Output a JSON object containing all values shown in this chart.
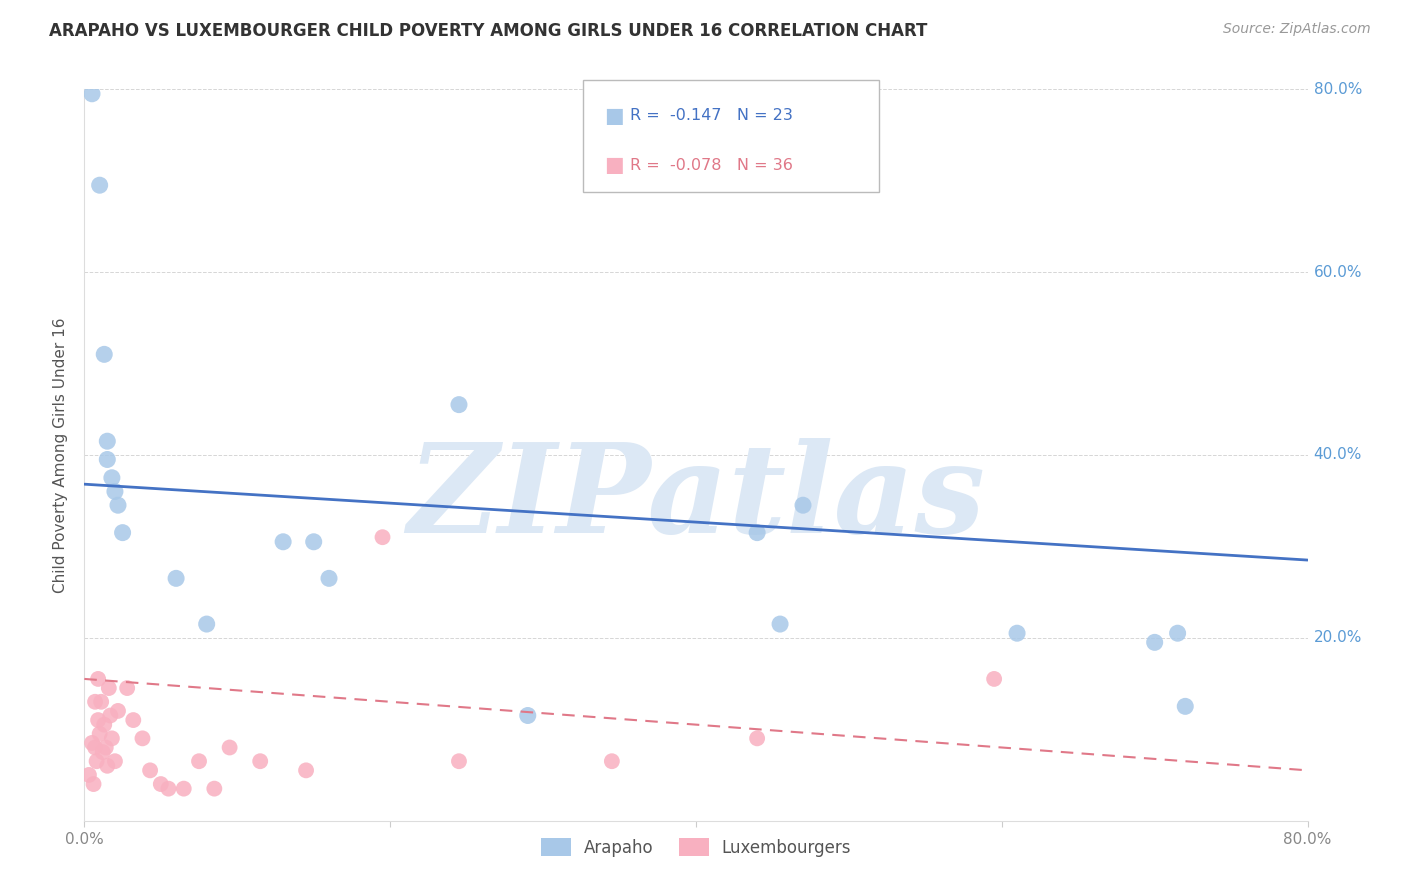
{
  "title": "ARAPAHO VS LUXEMBOURGER CHILD POVERTY AMONG GIRLS UNDER 16 CORRELATION CHART",
  "source": "Source: ZipAtlas.com",
  "ylabel": "Child Poverty Among Girls Under 16",
  "xlim": [
    0.0,
    0.8
  ],
  "ylim": [
    0.0,
    0.8
  ],
  "xticks": [
    0.0,
    0.2,
    0.4,
    0.6,
    0.8
  ],
  "yticks": [
    0.0,
    0.2,
    0.4,
    0.6,
    0.8
  ],
  "ytick_labels_right": [
    "",
    "20.0%",
    "40.0%",
    "60.0%",
    "80.0%"
  ],
  "xtick_labels": [
    "0.0%",
    "",
    "",
    "",
    "80.0%"
  ],
  "arapaho_color": "#a8c8e8",
  "luxembourger_color": "#f8b0c0",
  "arapaho_line_color": "#4472c4",
  "luxembourger_line_color": "#e07888",
  "arapaho_R": -0.147,
  "arapaho_N": 23,
  "luxembourger_R": -0.078,
  "luxembourger_N": 36,
  "watermark_text": "ZIPatlas",
  "watermark_color": "#dce8f5",
  "legend_label_arapaho": "Arapaho",
  "legend_label_luxembourger": "Luxembourgers",
  "arapaho_x": [
    0.005,
    0.01,
    0.013,
    0.015,
    0.015,
    0.018,
    0.02,
    0.022,
    0.025,
    0.06,
    0.08,
    0.13,
    0.15,
    0.16,
    0.245,
    0.44,
    0.455,
    0.47,
    0.61,
    0.7,
    0.715,
    0.72,
    0.29
  ],
  "arapaho_y": [
    0.795,
    0.695,
    0.51,
    0.415,
    0.395,
    0.375,
    0.36,
    0.345,
    0.315,
    0.265,
    0.215,
    0.305,
    0.305,
    0.265,
    0.455,
    0.315,
    0.215,
    0.345,
    0.205,
    0.195,
    0.205,
    0.125,
    0.115
  ],
  "arapaho_trend_x": [
    0.0,
    0.8
  ],
  "arapaho_trend_y": [
    0.368,
    0.285
  ],
  "luxembourger_x": [
    0.003,
    0.005,
    0.006,
    0.007,
    0.007,
    0.008,
    0.009,
    0.009,
    0.01,
    0.011,
    0.012,
    0.013,
    0.014,
    0.015,
    0.016,
    0.017,
    0.018,
    0.02,
    0.022,
    0.028,
    0.032,
    0.038,
    0.043,
    0.05,
    0.055,
    0.065,
    0.075,
    0.085,
    0.095,
    0.115,
    0.145,
    0.195,
    0.245,
    0.44,
    0.595,
    0.345
  ],
  "luxembourger_y": [
    0.05,
    0.085,
    0.04,
    0.08,
    0.13,
    0.065,
    0.11,
    0.155,
    0.095,
    0.13,
    0.075,
    0.105,
    0.08,
    0.06,
    0.145,
    0.115,
    0.09,
    0.065,
    0.12,
    0.145,
    0.11,
    0.09,
    0.055,
    0.04,
    0.035,
    0.035,
    0.065,
    0.035,
    0.08,
    0.065,
    0.055,
    0.31,
    0.065,
    0.09,
    0.155,
    0.065
  ],
  "luxembourger_trend_x": [
    0.0,
    0.8
  ],
  "luxembourger_trend_y": [
    0.155,
    0.055
  ],
  "background_color": "#ffffff",
  "grid_color": "#cccccc",
  "title_fontsize": 12,
  "source_fontsize": 10,
  "tick_fontsize": 11,
  "ylabel_fontsize": 11
}
